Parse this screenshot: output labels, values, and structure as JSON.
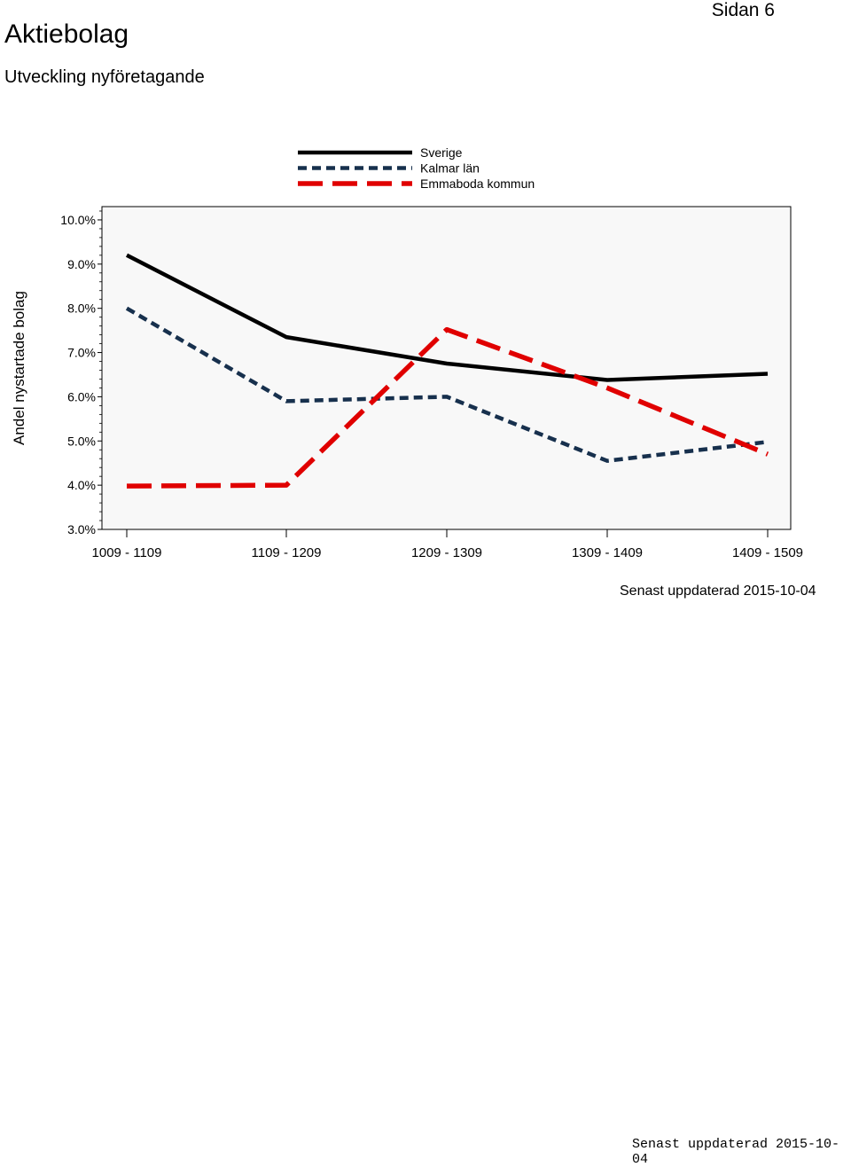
{
  "header": {
    "title": "Aktiebolag",
    "subtitle": "Utveckling nyföretagande",
    "page_label": "Sidan 6"
  },
  "chart_data": {
    "type": "line",
    "ylabel": "Andel nystartade bolag",
    "xlabel": "",
    "categories": [
      "1009 - 1109",
      "1109 - 1209",
      "1209 - 1309",
      "1309 - 1409",
      "1409 - 1509"
    ],
    "ylim": [
      3.0,
      10.3
    ],
    "yticks": [
      10.0,
      9.0,
      8.0,
      7.0,
      6.0,
      5.0,
      4.0,
      3.0
    ],
    "ytick_labels": [
      "10.0%",
      "9.0%",
      "8.0%",
      "7.0%",
      "6.0%",
      "5.0%",
      "4.0%",
      "3.0%"
    ],
    "grid": false,
    "legend": "top",
    "series": [
      {
        "name": "Sverige",
        "color": "#000000",
        "style": "solid",
        "values": [
          9.2,
          7.35,
          6.75,
          6.38,
          6.52
        ]
      },
      {
        "name": "Kalmar län",
        "color": "#17304d",
        "style": "dotted",
        "values": [
          8.0,
          5.9,
          6.0,
          4.55,
          4.98
        ]
      },
      {
        "name": "Emmaboda kommun",
        "color": "#e00000",
        "style": "dashed",
        "values": [
          3.98,
          4.0,
          7.52,
          6.2,
          4.7
        ]
      }
    ]
  },
  "footer": {
    "chart_updated": "Senast uppdaterad 2015-10-04",
    "page_updated": "Senast uppdaterad 2015-10-04"
  }
}
